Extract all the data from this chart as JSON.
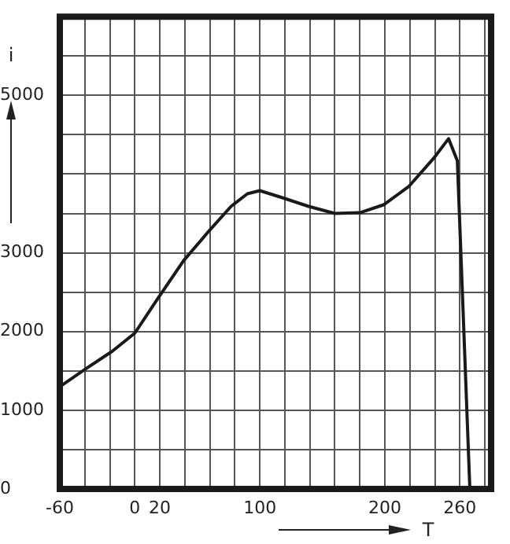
{
  "chart_data": {
    "type": "line",
    "xlabel": "T",
    "ylabel": "i",
    "x": [
      -60,
      -39,
      -18,
      0,
      18,
      39,
      60,
      77,
      90,
      100,
      120,
      139,
      160,
      180,
      199,
      219,
      239,
      251,
      258,
      268
    ],
    "series": [
      {
        "color": "#1a1a1a",
        "values": [
          1300,
          1530,
          1750,
          1980,
          2410,
          2900,
          3290,
          3590,
          3750,
          3790,
          3690,
          3590,
          3500,
          3510,
          3610,
          3840,
          4200,
          4450,
          4170,
          0
        ]
      }
    ],
    "xlim": [
      -60,
      285
    ],
    "xticks": [
      {
        "value": -60,
        "label": "-60"
      },
      {
        "value": -40,
        "label": null
      },
      {
        "value": -20,
        "label": null
      },
      {
        "value": 0,
        "label": "0"
      },
      {
        "value": 20,
        "label": "20"
      },
      {
        "value": 40,
        "label": null
      },
      {
        "value": 60,
        "label": null
      },
      {
        "value": 80,
        "label": null
      },
      {
        "value": 100,
        "label": "100"
      },
      {
        "value": 120,
        "label": null
      },
      {
        "value": 140,
        "label": null
      },
      {
        "value": 160,
        "label": null
      },
      {
        "value": 180,
        "label": null
      },
      {
        "value": 200,
        "label": "200"
      },
      {
        "value": 220,
        "label": null
      },
      {
        "value": 240,
        "label": null
      },
      {
        "value": 260,
        "label": "260"
      },
      {
        "value": 280,
        "label": null
      }
    ],
    "ylim": [
      0,
      6000
    ],
    "yticks": [
      {
        "value": 0,
        "label": "0"
      },
      {
        "value": 500,
        "label": null
      },
      {
        "value": 1000,
        "label": "1000"
      },
      {
        "value": 1500,
        "label": null
      },
      {
        "value": 2000,
        "label": "2000"
      },
      {
        "value": 2500,
        "label": null
      },
      {
        "value": 3000,
        "label": "3000"
      },
      {
        "value": 3500,
        "label": null
      },
      {
        "value": 4000,
        "label": null
      },
      {
        "value": 4500,
        "label": null
      },
      {
        "value": 5000,
        "label": "5000"
      },
      {
        "value": 5500,
        "label": null
      },
      {
        "value": 6000,
        "label": null
      }
    ],
    "grid": true,
    "legend": false,
    "marker": "none",
    "line_style": "solid"
  }
}
